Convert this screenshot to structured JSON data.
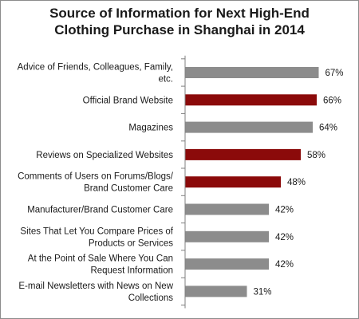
{
  "chart_data": {
    "type": "bar",
    "orientation": "horizontal",
    "title_lines": [
      "Source of Information for Next High-End",
      "Clothing Purchase in Shanghai in 2014"
    ],
    "categories": [
      [
        "Advice of Friends, Colleagues, Family,",
        "etc."
      ],
      [
        "Official  Brand Website"
      ],
      [
        "Magazines"
      ],
      [
        "Reviews on Specialized  Websites"
      ],
      [
        "Comments of Users on Forums/Blogs/",
        "Brand Customer Care"
      ],
      [
        "Manufacturer/Brand Customer Care"
      ],
      [
        "Sites That Let You Compare Prices of",
        "Products or Services"
      ],
      [
        "At the Point of Sale Where You Can",
        "Request Information"
      ],
      [
        "E-mail Newsletters with News on New",
        "Collections"
      ]
    ],
    "values": [
      67,
      66,
      64,
      58,
      48,
      42,
      42,
      42,
      31
    ],
    "value_labels": [
      "67%",
      "66%",
      "64%",
      "58%",
      "48%",
      "42%",
      "42%",
      "42%",
      "31%"
    ],
    "highlight": [
      false,
      true,
      false,
      true,
      true,
      false,
      false,
      false,
      false
    ],
    "colors": {
      "default": "#8c8c8c",
      "highlight": "#8b0a0a",
      "axis": "#7f7f7f"
    },
    "xlim": [
      0,
      100
    ],
    "grid": false,
    "legend": "none"
  }
}
